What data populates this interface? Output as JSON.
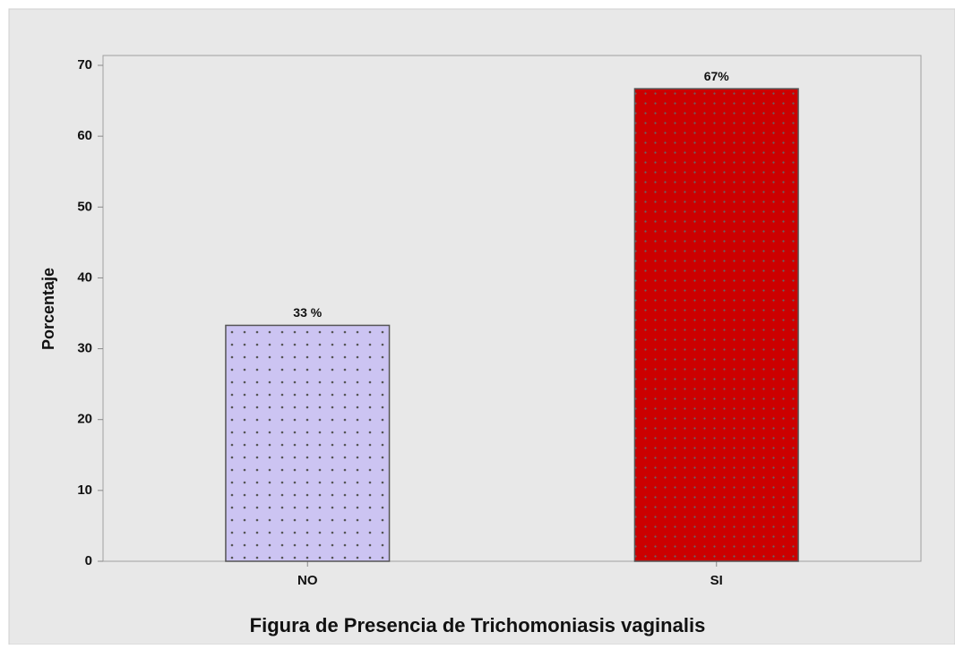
{
  "chart_data": {
    "type": "bar",
    "title": "Figura de Presencia de  Trichomoniasis vaginalis",
    "y_label": "Porcentaje",
    "categories": [
      "NO",
      "SI"
    ],
    "values": [
      33.3,
      66.7
    ],
    "value_labels": [
      "33 %",
      "67%"
    ],
    "colors": [
      "#ccc4f2",
      "#cc0000"
    ],
    "ylim": [
      0,
      70
    ],
    "yticks": [
      0,
      10,
      20,
      30,
      40,
      50,
      60,
      70
    ],
    "grid": false
  }
}
